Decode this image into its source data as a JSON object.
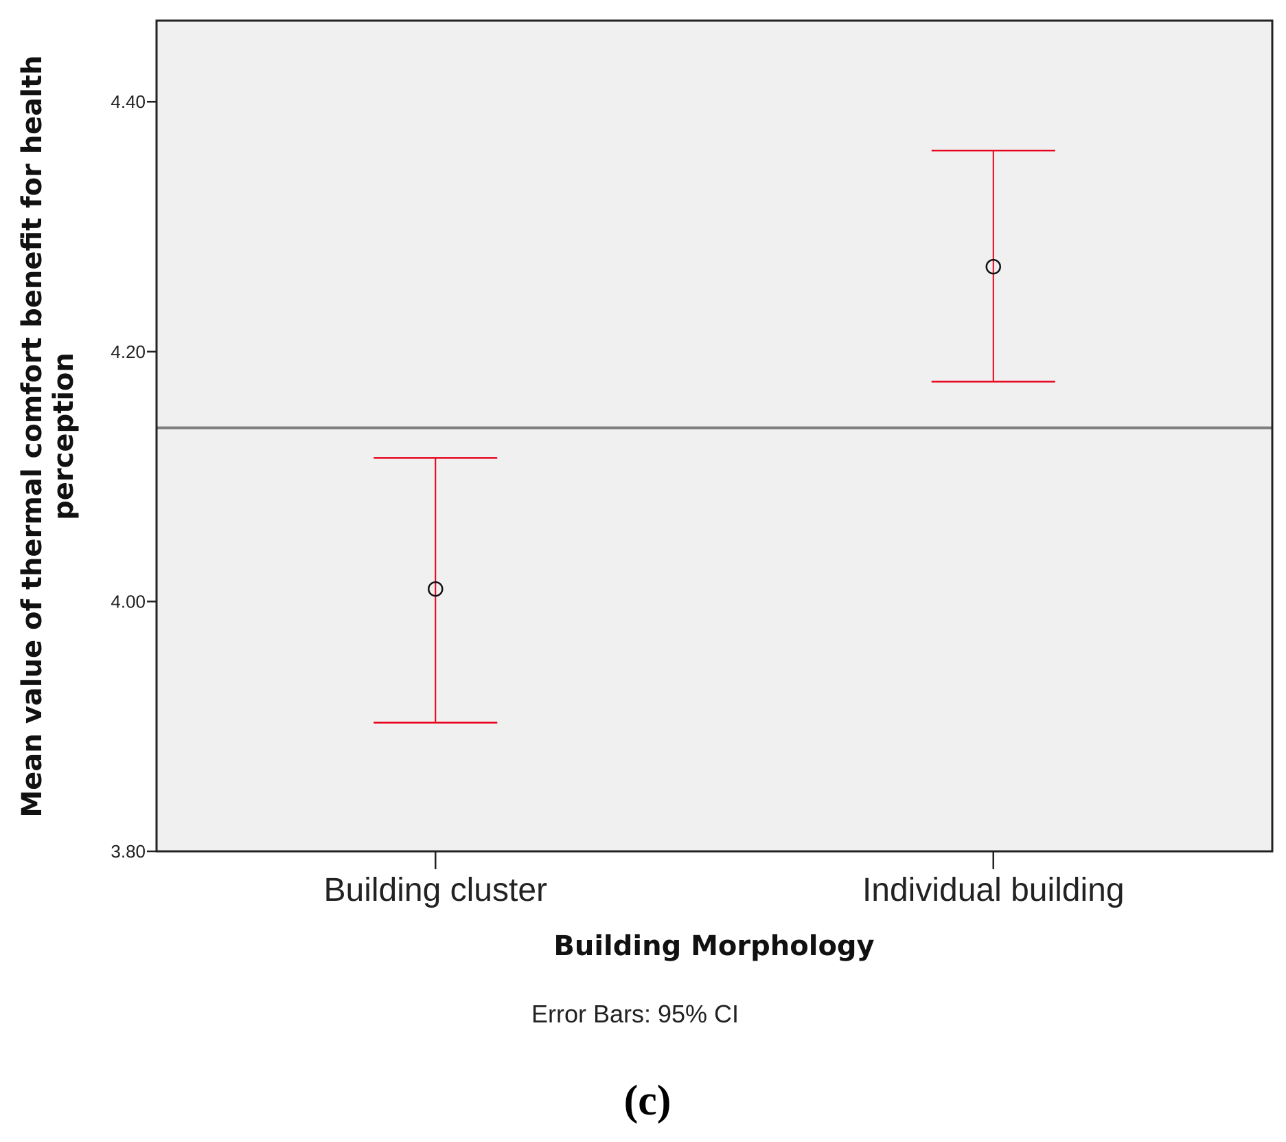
{
  "chart_data": {
    "type": "scatter",
    "subtype": "error-bar",
    "xlabel": "Building Morphology",
    "ylabel_line1": "Mean value of thermal comfort benefit for health",
    "ylabel_line2": "perception",
    "ylim": [
      3.8,
      4.465
    ],
    "yticks": [
      "3.80",
      "4.00",
      "4.20",
      "4.40"
    ],
    "ytick_values": [
      3.8,
      4.0,
      4.2,
      4.4
    ],
    "categories": [
      "Building cluster",
      "Individual building"
    ],
    "series": [
      {
        "means": [
          4.01,
          4.268
        ],
        "ci_lower": [
          3.903,
          4.176
        ],
        "ci_upper": [
          4.115,
          4.361
        ],
        "error_color": "#e8001c",
        "marker": "open-circle"
      }
    ],
    "reference_line": 4.139,
    "reference_line_color": "#7d7d7d",
    "plot_background": "#f0f0f0",
    "grid": false,
    "footnote": "Error Bars: 95% CI",
    "panel_label": "(c)"
  }
}
